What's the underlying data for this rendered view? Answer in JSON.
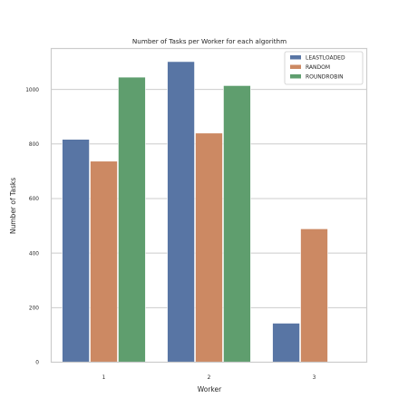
{
  "chart_data": {
    "type": "bar",
    "title": "Number of Tasks per Worker for each algorithm",
    "xlabel": "Worker",
    "ylabel": "Number of Tasks",
    "categories": [
      "1",
      "2",
      "3"
    ],
    "ylim": [
      0,
      1150
    ],
    "yticks": [
      0,
      200,
      400,
      600,
      800,
      1000
    ],
    "grid": true,
    "legend_position": "top-right",
    "series": [
      {
        "name": "LEASTLOADED",
        "color": "#5875a4",
        "values": [
          817,
          1102,
          143
        ]
      },
      {
        "name": "RANDOM",
        "color": "#cc8963",
        "values": [
          737,
          840,
          489
        ]
      },
      {
        "name": "ROUNDROBIN",
        "color": "#5f9e6e",
        "values": [
          1045,
          1014,
          null
        ]
      }
    ]
  }
}
